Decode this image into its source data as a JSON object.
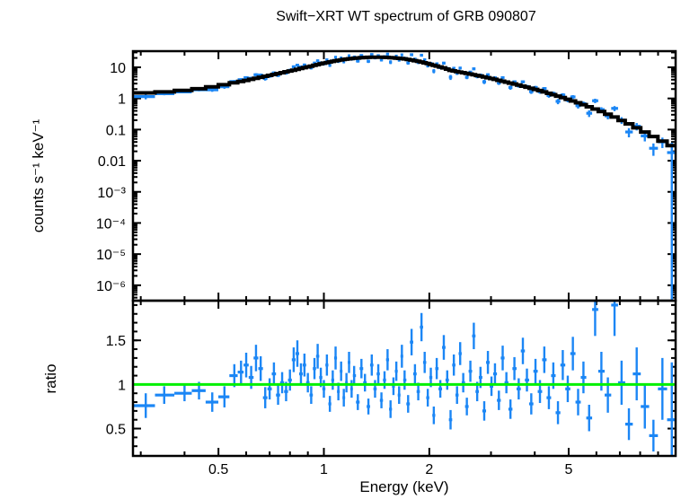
{
  "figure": {
    "title": "Swift−XRT WT spectrum of GRB 090807",
    "background_color": "#ffffff",
    "data_color": "#1b86f5",
    "model_color": "#000000",
    "reference_line_color": "#00f000"
  },
  "chart_data": [
    {
      "type": "scatter",
      "panel": "spectrum",
      "title": "Swift−XRT WT spectrum of GRB 090807",
      "xlabel": "Energy (keV)",
      "ylabel": "counts s⁻¹ keV⁻¹",
      "xscale": "log",
      "yscale": "log",
      "xlim": [
        0.285,
        10.1
      ],
      "ylim": [
        3.2e-07,
        33
      ],
      "x_major_ticks": [
        0.5,
        1,
        2,
        5
      ],
      "x_major_tick_labels": [
        "0.5",
        "1",
        "2",
        "5"
      ],
      "x_minor_ticks": [
        0.3,
        0.4,
        0.6,
        0.7,
        0.8,
        0.9,
        3,
        4,
        6,
        7,
        8,
        9
      ],
      "y_major_ticks": [
        10,
        1,
        0.1,
        0.01,
        0.001,
        0.0001,
        1e-05,
        1e-06
      ],
      "y_major_tick_labels": [
        "10",
        "1",
        "0.1",
        "0.01",
        "10⁻³",
        "10⁻⁴",
        "10⁻⁵",
        "10⁻⁶"
      ],
      "grid": false,
      "legend": "none",
      "series": [
        {
          "name": "observed-counts",
          "style": "errorbar-cross",
          "color": "#1b86f5",
          "note": "counts = model(E) × ratio, error = model(E) × ratio_error, per shared bin list in ratio panel"
        },
        {
          "name": "folded-model",
          "style": "stepped-line",
          "color": "#000000",
          "anchors": [
            [
              0.29,
              1.45
            ],
            [
              0.35,
              1.62
            ],
            [
              0.4,
              1.8
            ],
            [
              0.45,
              2.1
            ],
            [
              0.5,
              2.55
            ],
            [
              0.55,
              3.1
            ],
            [
              0.6,
              3.8
            ],
            [
              0.65,
              4.6
            ],
            [
              0.7,
              5.5
            ],
            [
              0.75,
              6.5
            ],
            [
              0.8,
              7.6
            ],
            [
              0.85,
              8.9
            ],
            [
              0.9,
              10.3
            ],
            [
              0.95,
              11.9
            ],
            [
              1.0,
              13.6
            ],
            [
              1.05,
              15.2
            ],
            [
              1.1,
              16.8
            ],
            [
              1.15,
              18.1
            ],
            [
              1.2,
              19.2
            ],
            [
              1.3,
              20.6
            ],
            [
              1.4,
              21.2
            ],
            [
              1.5,
              20.9
            ],
            [
              1.6,
              20.0
            ],
            [
              1.7,
              18.6
            ],
            [
              1.8,
              16.8
            ],
            [
              1.9,
              14.8
            ],
            [
              2.0,
              12.8
            ],
            [
              2.1,
              11.0
            ],
            [
              2.2,
              9.6
            ],
            [
              2.3,
              8.0
            ],
            [
              2.45,
              7.0
            ],
            [
              2.6,
              6.2
            ],
            [
              2.8,
              5.2
            ],
            [
              3.0,
              4.4
            ],
            [
              3.2,
              3.7
            ],
            [
              3.5,
              2.9
            ],
            [
              3.8,
              2.3
            ],
            [
              4.1,
              1.85
            ],
            [
              4.4,
              1.45
            ],
            [
              4.7,
              1.15
            ],
            [
              5.0,
              0.92
            ],
            [
              5.3,
              0.74
            ],
            [
              5.6,
              0.59
            ],
            [
              6.0,
              0.44
            ],
            [
              6.4,
              0.33
            ],
            [
              6.8,
              0.245
            ],
            [
              7.2,
              0.18
            ],
            [
              7.6,
              0.135
            ],
            [
              8.0,
              0.1
            ],
            [
              8.4,
              0.075
            ],
            [
              8.8,
              0.057
            ],
            [
              9.2,
              0.044
            ],
            [
              9.6,
              0.035
            ],
            [
              10.0,
              0.028
            ]
          ]
        }
      ]
    },
    {
      "type": "scatter",
      "panel": "ratio",
      "xlabel": "Energy (keV)",
      "ylabel": "ratio",
      "xscale": "log",
      "yscale": "linear",
      "xlim": [
        0.285,
        10.1
      ],
      "ylim": [
        0.19,
        1.95
      ],
      "x_major_ticks": [
        0.5,
        1,
        2,
        5
      ],
      "x_major_tick_labels": [
        "0.5",
        "1",
        "2",
        "5"
      ],
      "x_minor_ticks": [
        0.3,
        0.4,
        0.6,
        0.7,
        0.8,
        0.9,
        3,
        4,
        6,
        7,
        8,
        9
      ],
      "y_major_ticks": [
        0.5,
        1,
        1.5
      ],
      "y_major_tick_labels": [
        "0.5",
        "1",
        "1.5"
      ],
      "y_minor_tick_step": 0.1,
      "reference_line": {
        "y": 1,
        "color": "#00f000"
      },
      "bins_format": [
        "energy_keV",
        "ratio",
        "ratio_error"
      ],
      "bins": [
        [
          0.31,
          0.76,
          0.14
        ],
        [
          0.35,
          0.88,
          0.1
        ],
        [
          0.4,
          0.9,
          0.09
        ],
        [
          0.44,
          0.93,
          0.1
        ],
        [
          0.48,
          0.8,
          0.11
        ],
        [
          0.52,
          0.86,
          0.12
        ],
        [
          0.555,
          1.1,
          0.13
        ],
        [
          0.58,
          1.14,
          0.13
        ],
        [
          0.6,
          1.22,
          0.14
        ],
        [
          0.62,
          1.08,
          0.13
        ],
        [
          0.64,
          1.3,
          0.15
        ],
        [
          0.66,
          1.18,
          0.14
        ],
        [
          0.68,
          0.85,
          0.12
        ],
        [
          0.7,
          0.95,
          0.12
        ],
        [
          0.72,
          1.12,
          0.13
        ],
        [
          0.74,
          0.88,
          0.11
        ],
        [
          0.76,
          1.02,
          0.12
        ],
        [
          0.78,
          0.92,
          0.11
        ],
        [
          0.8,
          1.05,
          0.12
        ],
        [
          0.82,
          1.28,
          0.14
        ],
        [
          0.84,
          1.35,
          0.15
        ],
        [
          0.86,
          1.12,
          0.12
        ],
        [
          0.88,
          1.22,
          0.13
        ],
        [
          0.9,
          1.02,
          0.11
        ],
        [
          0.92,
          0.88,
          0.1
        ],
        [
          0.94,
          1.18,
          0.12
        ],
        [
          0.96,
          1.32,
          0.14
        ],
        [
          0.98,
          1.08,
          0.11
        ],
        [
          1.0,
          0.95,
          0.1
        ],
        [
          1.02,
          1.22,
          0.12
        ],
        [
          1.04,
          0.78,
          0.09
        ],
        [
          1.06,
          1.05,
          0.11
        ],
        [
          1.08,
          1.3,
          0.13
        ],
        [
          1.1,
          0.92,
          0.1
        ],
        [
          1.12,
          1.15,
          0.11
        ],
        [
          1.14,
          0.85,
          0.1
        ],
        [
          1.16,
          1.02,
          0.11
        ],
        [
          1.18,
          1.25,
          0.12
        ],
        [
          1.2,
          0.95,
          0.1
        ],
        [
          1.22,
          1.1,
          0.11
        ],
        [
          1.25,
          0.8,
          0.09
        ],
        [
          1.28,
          1.18,
          0.11
        ],
        [
          1.31,
          1.02,
          0.1
        ],
        [
          1.34,
          0.75,
          0.09
        ],
        [
          1.37,
          1.22,
          0.12
        ],
        [
          1.4,
          0.95,
          0.1
        ],
        [
          1.43,
          1.12,
          0.11
        ],
        [
          1.46,
          0.82,
          0.09
        ],
        [
          1.49,
          1.05,
          0.1
        ],
        [
          1.52,
          1.28,
          0.12
        ],
        [
          1.55,
          0.72,
          0.1
        ],
        [
          1.58,
          0.98,
          0.1
        ],
        [
          1.61,
          1.15,
          0.11
        ],
        [
          1.64,
          0.88,
          0.1
        ],
        [
          1.67,
          1.32,
          0.13
        ],
        [
          1.7,
          1.05,
          0.11
        ],
        [
          1.74,
          0.78,
          0.1
        ],
        [
          1.78,
          1.48,
          0.15
        ],
        [
          1.82,
          1.12,
          0.11
        ],
        [
          1.86,
          0.92,
          0.1
        ],
        [
          1.9,
          1.65,
          0.16
        ],
        [
          1.94,
          1.25,
          0.12
        ],
        [
          1.98,
          0.85,
          0.1
        ],
        [
          2.02,
          1.08,
          0.11
        ],
        [
          2.06,
          0.65,
          0.1
        ],
        [
          2.1,
          1.18,
          0.12
        ],
        [
          2.15,
          0.95,
          0.1
        ],
        [
          2.2,
          1.42,
          0.14
        ],
        [
          2.25,
          1.05,
          0.11
        ],
        [
          2.3,
          0.6,
          0.11
        ],
        [
          2.35,
          1.22,
          0.12
        ],
        [
          2.4,
          0.88,
          0.1
        ],
        [
          2.45,
          1.35,
          0.13
        ],
        [
          2.5,
          1.02,
          0.11
        ],
        [
          2.56,
          0.75,
          0.1
        ],
        [
          2.62,
          1.15,
          0.12
        ],
        [
          2.68,
          1.55,
          0.15
        ],
        [
          2.74,
          0.92,
          0.11
        ],
        [
          2.8,
          1.08,
          0.12
        ],
        [
          2.87,
          0.7,
          0.11
        ],
        [
          2.94,
          1.25,
          0.13
        ],
        [
          3.01,
          0.98,
          0.11
        ],
        [
          3.08,
          1.12,
          0.12
        ],
        [
          3.16,
          0.82,
          0.11
        ],
        [
          3.24,
          1.3,
          0.14
        ],
        [
          3.32,
          1.02,
          0.12
        ],
        [
          3.41,
          0.72,
          0.11
        ],
        [
          3.5,
          1.18,
          0.13
        ],
        [
          3.6,
          0.95,
          0.12
        ],
        [
          3.7,
          1.38,
          0.15
        ],
        [
          3.8,
          1.05,
          0.13
        ],
        [
          3.91,
          0.78,
          0.12
        ],
        [
          4.02,
          1.15,
          0.14
        ],
        [
          4.14,
          0.92,
          0.13
        ],
        [
          4.26,
          1.28,
          0.15
        ],
        [
          4.39,
          0.85,
          0.13
        ],
        [
          4.52,
          1.1,
          0.15
        ],
        [
          4.66,
          0.68,
          0.13
        ],
        [
          4.81,
          1.22,
          0.17
        ],
        [
          4.97,
          0.95,
          0.15
        ],
        [
          5.14,
          1.35,
          0.19
        ],
        [
          5.32,
          0.8,
          0.15
        ],
        [
          5.51,
          1.08,
          0.18
        ],
        [
          5.72,
          0.62,
          0.15
        ],
        [
          5.95,
          1.85,
          0.3
        ],
        [
          6.2,
          1.15,
          0.22
        ],
        [
          6.47,
          0.88,
          0.2
        ],
        [
          6.76,
          1.9,
          0.35
        ],
        [
          7.08,
          1.02,
          0.25
        ],
        [
          7.43,
          0.55,
          0.18
        ],
        [
          7.82,
          1.12,
          0.3
        ],
        [
          8.25,
          0.75,
          0.25
        ],
        [
          8.73,
          0.42,
          0.18
        ],
        [
          9.26,
          0.95,
          0.35
        ],
        [
          9.85,
          0.6,
          0.65
        ]
      ]
    }
  ]
}
